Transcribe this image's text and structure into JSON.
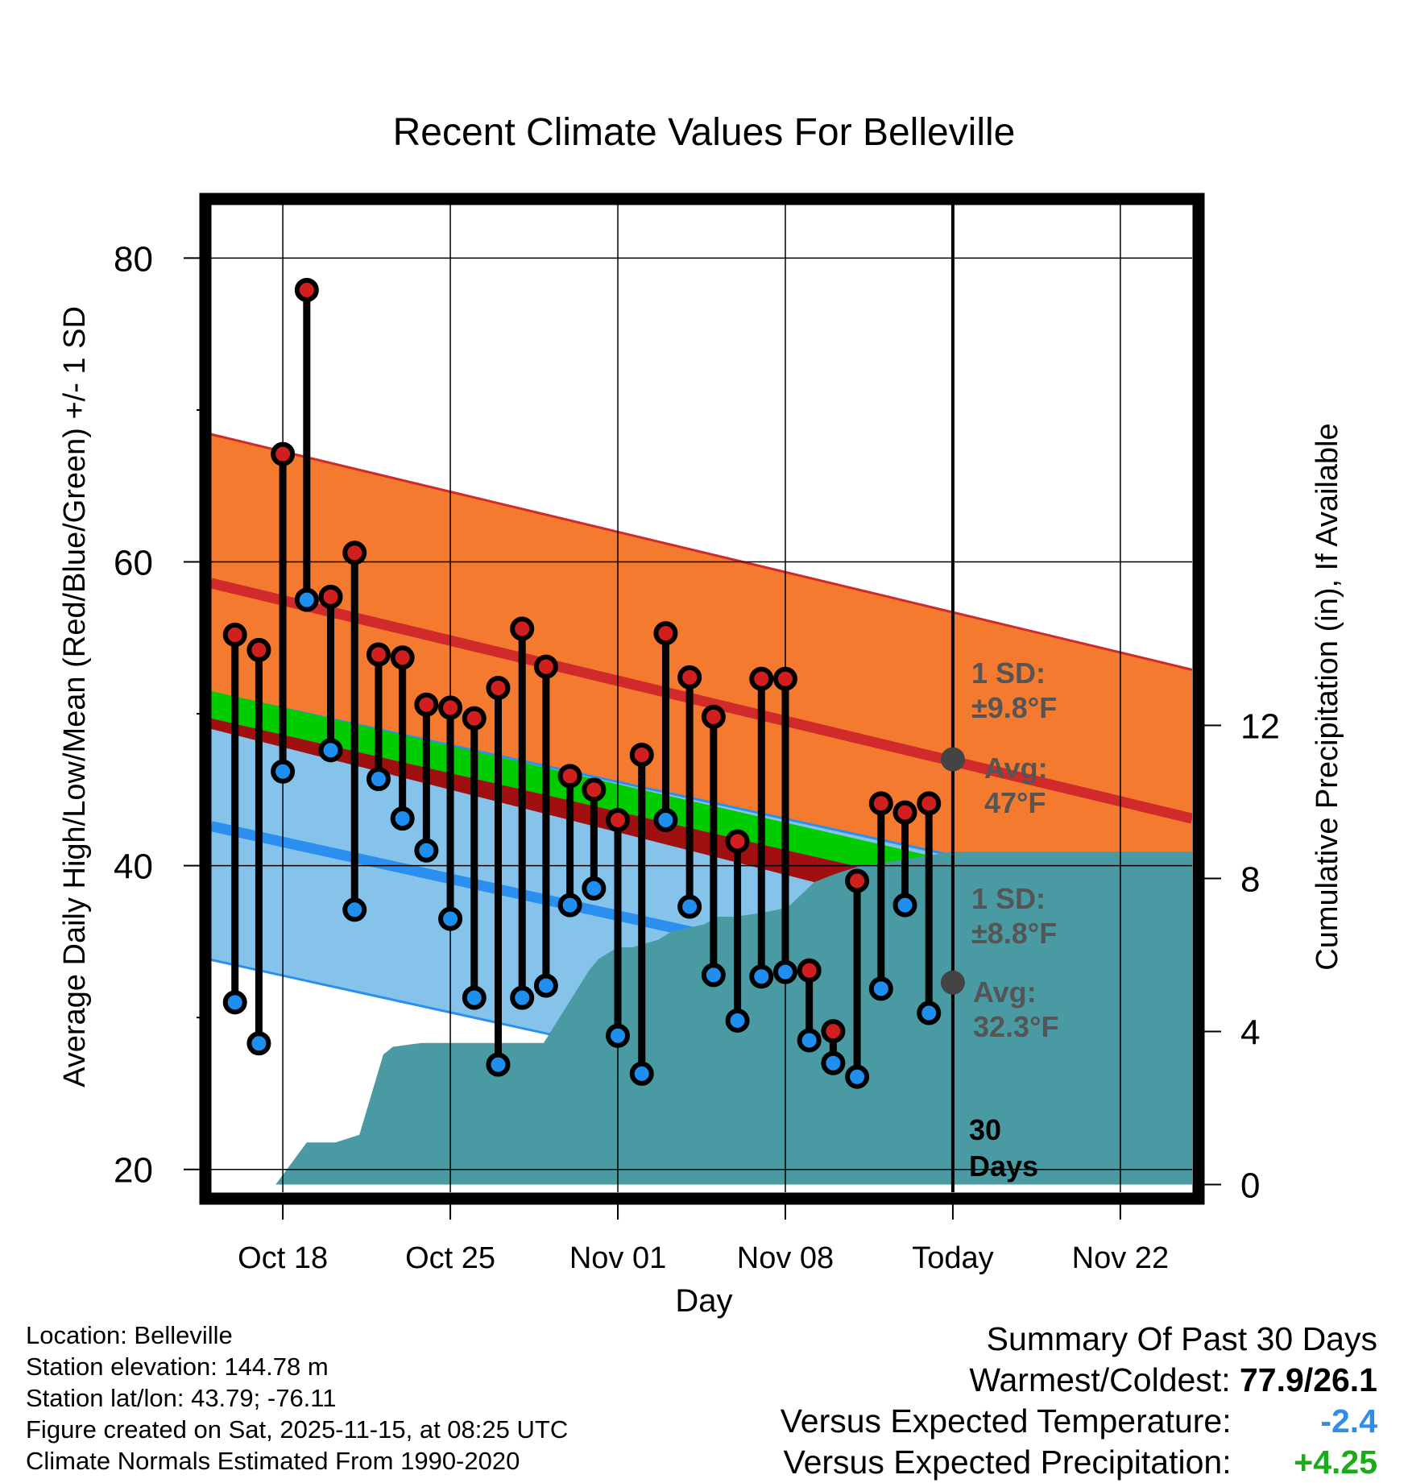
{
  "colors": {
    "high_band": "#f47a30",
    "high_line": "#d12a2a",
    "low_band": "#86c3ea",
    "low_line": "#2a8fef",
    "mean_band": "#00cc00",
    "mean_line_fill": "#a01010",
    "precip_fill": "#4a9aa3",
    "high_marker": "#d11f1f",
    "low_marker": "#1e8fef",
    "avg_dot": "#444444",
    "annotation_text": "#555555",
    "temp_neg": "#2e8ef0",
    "precip_pos": "#1aaa1a"
  },
  "chart_data": {
    "type": "line",
    "title": "Recent Climate Values For Belleville",
    "xlabel": "Day",
    "ylabel": "Average Daily High/Low/Mean (Red/Blue/Green) +/- 1 SD",
    "y2label": "Cumulative Precipitation (in), If Available",
    "xlim": [
      -3,
      38
    ],
    "ylim": [
      18.5,
      84
    ],
    "y2lim": [
      -0.2,
      25.8
    ],
    "grid": true,
    "x_ticks": [
      {
        "x": 0,
        "label": "Oct 18"
      },
      {
        "x": 7,
        "label": "Oct 25"
      },
      {
        "x": 14,
        "label": "Nov 01"
      },
      {
        "x": 21,
        "label": "Nov 08"
      },
      {
        "x": 28,
        "label": "Today"
      },
      {
        "x": 35,
        "label": "Nov 22"
      }
    ],
    "y_ticks": [
      20,
      40,
      60,
      80
    ],
    "y_minor_ticks": [
      30,
      50,
      70
    ],
    "y2_ticks": [
      0,
      4,
      8,
      12
    ],
    "days": [
      -2,
      -1,
      0,
      1,
      2,
      3,
      4,
      5,
      6,
      7,
      8,
      9,
      10,
      11,
      12,
      13,
      14,
      15,
      16,
      17,
      18,
      19,
      20,
      21,
      22,
      23,
      24,
      25,
      26,
      27
    ],
    "highs": [
      55.2,
      54.2,
      67.1,
      77.9,
      57.7,
      60.6,
      53.9,
      53.7,
      50.6,
      50.4,
      49.7,
      51.7,
      55.6,
      53.1,
      45.9,
      45.0,
      43.0,
      47.3,
      55.3,
      52.4,
      49.8,
      41.6,
      52.3,
      52.3,
      33.1,
      29.1,
      39.0,
      44.1,
      43.5,
      44.1
    ],
    "lows": [
      31.0,
      28.3,
      46.2,
      57.5,
      47.6,
      37.1,
      45.7,
      43.1,
      41.0,
      36.5,
      31.3,
      26.9,
      31.3,
      32.1,
      37.4,
      38.5,
      28.8,
      26.3,
      43.0,
      37.3,
      32.8,
      29.8,
      32.7,
      33.0,
      28.5,
      27.0,
      26.1,
      31.9,
      37.4,
      30.3
    ],
    "normal_high": {
      "x": [
        -3,
        38
      ],
      "mean": [
        58.6,
        43.1
      ],
      "sd": 9.8
    },
    "normal_low": {
      "x": [
        -3,
        38
      ],
      "mean": [
        42.6,
        28.4
      ],
      "sd": 8.8
    },
    "normal_mean": {
      "x": [
        -3,
        38
      ],
      "mean": [
        50.6,
        35.8
      ]
    },
    "precipitation": {
      "x": [
        -1.1,
        -0.3,
        1.0,
        1.8,
        2.2,
        3.2,
        4.2,
        4.6,
        5.8,
        6.2,
        8.5,
        9.2,
        10.9,
        12.8,
        13.2,
        14.0,
        14.6,
        15.7,
        16.2,
        17.6,
        18.2,
        18.9,
        20.0,
        20.8,
        21.2,
        22.2,
        23.0,
        24.0,
        25.0,
        26.0,
        27.0,
        28.0,
        38.0
      ],
      "y": [
        0.0,
        0.0,
        1.1,
        1.1,
        1.1,
        1.3,
        3.4,
        3.6,
        3.7,
        3.7,
        3.7,
        3.7,
        3.7,
        5.6,
        5.9,
        6.2,
        6.2,
        6.4,
        6.6,
        6.8,
        7.0,
        7.0,
        7.1,
        7.2,
        7.3,
        7.9,
        8.1,
        8.3,
        8.4,
        8.5,
        8.6,
        8.7,
        8.7
      ]
    },
    "today_x": 28,
    "annotations": {
      "high_sd_label": "1 SD:",
      "high_sd_value": "±9.8°F",
      "high_avg_label": "Avg:",
      "high_avg_value": "47°F",
      "high_avg": 47,
      "low_sd_label": "1 SD:",
      "low_sd_value": "±8.8°F",
      "low_avg_label": "Avg:",
      "low_avg_value": "32.3°F",
      "low_avg": 32.3,
      "window_count": "30",
      "window_unit": "Days"
    }
  },
  "meta": {
    "location": "Location: Belleville",
    "elevation": "Station elevation: 144.78 m",
    "latlon": "Station lat/lon: 43.79; -76.11",
    "created": "Figure created on Sat, 2025-11-15, at 08:25 UTC",
    "normals": "Climate Normals Estimated From 1990-2020"
  },
  "summary": {
    "title": "Summary Of Past 30 Days",
    "warmest_coldest_label": "Warmest/Coldest:",
    "warmest_coldest_value": "77.9/26.1",
    "temp_label": "Versus Expected Temperature:",
    "temp_value": "-2.4",
    "precip_label": "Versus Expected Precipitation:",
    "precip_value": "+4.25"
  }
}
